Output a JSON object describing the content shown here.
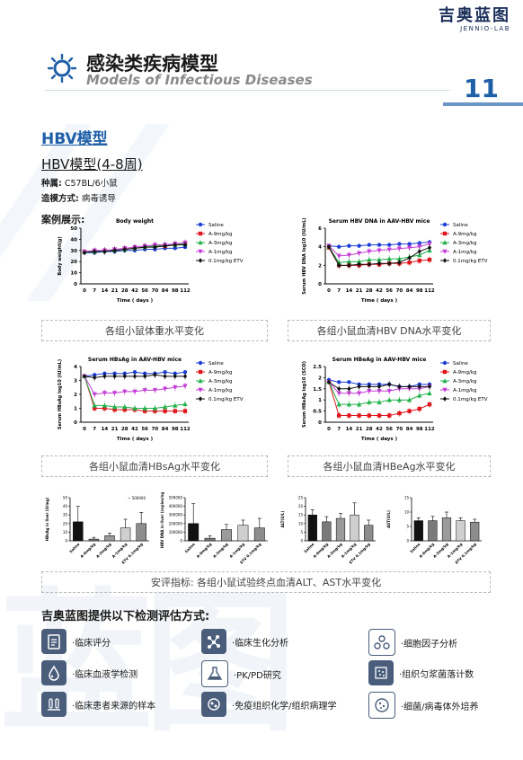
{
  "brand": {
    "cn": "吉奥蓝图",
    "en": "JENNIO-LAB"
  },
  "header": {
    "title_cn": "感染类疾病模型",
    "title_en": "Models of Infectious Diseases",
    "page_number": "11"
  },
  "section": {
    "title": "HBV模型",
    "subtitle": "HBV模型(4-8周)",
    "strain_label": "种属:",
    "strain_value": "C57BL/6小鼠",
    "method_label": "造模方式:",
    "method_value": "病毒诱导",
    "cases_label": "案例展示:"
  },
  "legend": [
    "Saline",
    "A-9mg/kg",
    "A-3mg/kg",
    "A-1mg/kg",
    "0.1mg/kg ETV"
  ],
  "colors": {
    "Saline": "#1c3fd6",
    "A-9mg/kg": "#e0161d",
    "A-3mg/kg": "#22b14c",
    "A-1mg/kg": "#c33fd6",
    "0.1mg/kg ETV": "#111111",
    "accent": "#1e5fa8"
  },
  "captions": {
    "bw": "各组小鼠体重水平变化",
    "dna": "各组小鼠血清HBV DNA水平变化",
    "hbsag": "各组小鼠血清HBsAg水平变化",
    "hbeag": "各组小鼠血清HBeAg水平变化",
    "safety": "安评指标: 各组小鼠试验终点血清ALT、AST水平变化"
  },
  "chart_data": [
    {
      "type": "line",
      "title": "Body weight",
      "xlabel": "Time ( days )",
      "ylabel": "Body weight(g)",
      "ylim": [
        0,
        50
      ],
      "yticks": [
        0,
        10,
        20,
        30,
        40,
        50
      ],
      "x": [
        "0",
        "7",
        "14",
        "21",
        "28",
        "42",
        "56",
        "70",
        "84",
        "98",
        "112"
      ],
      "series": [
        {
          "name": "Saline",
          "values": [
            28,
            28,
            29,
            29,
            30,
            30,
            31,
            31,
            32,
            32,
            33
          ]
        },
        {
          "name": "A-9mg/kg",
          "values": [
            29,
            29,
            30,
            30,
            31,
            32,
            33,
            34,
            34,
            35,
            36
          ]
        },
        {
          "name": "A-3mg/kg",
          "values": [
            29,
            29,
            30,
            30,
            31,
            32,
            33,
            34,
            35,
            35,
            36
          ]
        },
        {
          "name": "A-1mg/kg",
          "values": [
            29,
            30,
            30,
            31,
            32,
            33,
            34,
            35,
            35,
            36,
            37
          ]
        },
        {
          "name": "0.1mg/kg ETV",
          "values": [
            28,
            29,
            29,
            30,
            31,
            32,
            33,
            33,
            34,
            35,
            35
          ]
        }
      ]
    },
    {
      "type": "line",
      "title": "Serum HBV DNA in AAV-HBV mice",
      "xlabel": "Time ( days )",
      "ylabel": "Serum HBV DNA log10 (IU/mL)",
      "ylim": [
        0,
        6
      ],
      "yticks": [
        0,
        2,
        4,
        6
      ],
      "x": [
        "0",
        "7",
        "14",
        "21",
        "28",
        "42",
        "56",
        "70",
        "84",
        "98",
        "112"
      ],
      "series": [
        {
          "name": "Saline",
          "values": [
            4.1,
            4.0,
            4.1,
            4.1,
            4.2,
            4.2,
            4.2,
            4.3,
            4.3,
            4.4,
            4.5
          ]
        },
        {
          "name": "A-9mg/kg",
          "values": [
            3.9,
            2.0,
            2.0,
            2.0,
            2.1,
            2.1,
            2.2,
            2.2,
            2.3,
            2.5,
            2.6
          ]
        },
        {
          "name": "A-3mg/kg",
          "values": [
            4.0,
            2.3,
            2.4,
            2.4,
            2.6,
            2.6,
            2.7,
            2.7,
            2.9,
            3.1,
            3.6
          ]
        },
        {
          "name": "A-1mg/kg",
          "values": [
            4.1,
            3.0,
            3.1,
            3.3,
            3.5,
            3.6,
            3.7,
            3.8,
            3.9,
            4.0,
            4.3
          ]
        },
        {
          "name": "0.1mg/kg ETV",
          "values": [
            4.0,
            2.0,
            2.0,
            2.1,
            2.1,
            2.2,
            2.2,
            2.3,
            2.8,
            3.5,
            3.9
          ]
        }
      ]
    },
    {
      "type": "line",
      "title": "Serum HBsAg in AAV-HBV mice",
      "xlabel": "Time ( days )",
      "ylabel": "Serum HBsAg log10 (IU/mL)",
      "ylim": [
        0,
        4
      ],
      "yticks": [
        0,
        1,
        2,
        3,
        4
      ],
      "x": [
        "0",
        "7",
        "14",
        "21",
        "28",
        "42",
        "56",
        "70",
        "84",
        "98",
        "112"
      ],
      "series": [
        {
          "name": "Saline",
          "values": [
            3.3,
            3.4,
            3.5,
            3.5,
            3.5,
            3.6,
            3.5,
            3.5,
            3.6,
            3.5,
            3.6
          ]
        },
        {
          "name": "A-9mg/kg",
          "values": [
            3.3,
            1.0,
            1.0,
            0.9,
            0.9,
            0.9,
            0.8,
            0.8,
            0.8,
            0.8,
            0.8
          ]
        },
        {
          "name": "A-3mg/kg",
          "values": [
            3.3,
            1.2,
            1.2,
            1.1,
            1.1,
            1.0,
            1.0,
            1.0,
            1.1,
            1.2,
            1.3
          ]
        },
        {
          "name": "A-1mg/kg",
          "values": [
            3.3,
            2.0,
            2.1,
            2.1,
            2.2,
            2.2,
            2.3,
            2.3,
            2.4,
            2.5,
            2.6
          ]
        },
        {
          "name": "0.1mg/kg ETV",
          "values": [
            3.3,
            3.2,
            3.3,
            3.3,
            3.3,
            3.3,
            3.3,
            3.4,
            3.3,
            3.3,
            3.3
          ]
        }
      ]
    },
    {
      "type": "line",
      "title": "Serum HBeAg in AAV-HBV mice",
      "xlabel": "Time ( days )",
      "ylabel": "Serum HBeAg log10 (SCO)",
      "ylim": [
        0,
        2.5
      ],
      "yticks": [
        0,
        0.5,
        1.0,
        1.5,
        2.0,
        2.5
      ],
      "x": [
        "0",
        "7",
        "14",
        "21",
        "28",
        "42",
        "56",
        "70",
        "84",
        "98",
        "112"
      ],
      "series": [
        {
          "name": "Saline",
          "values": [
            1.9,
            1.8,
            1.8,
            1.7,
            1.7,
            1.7,
            1.7,
            1.6,
            1.6,
            1.7,
            1.7
          ]
        },
        {
          "name": "A-9mg/kg",
          "values": [
            1.8,
            0.3,
            0.3,
            0.3,
            0.3,
            0.3,
            0.3,
            0.4,
            0.5,
            0.6,
            0.8
          ]
        },
        {
          "name": "A-3mg/kg",
          "values": [
            1.8,
            0.8,
            0.8,
            0.8,
            0.9,
            0.9,
            1.0,
            1.0,
            1.0,
            1.2,
            1.3
          ]
        },
        {
          "name": "A-1mg/kg",
          "values": [
            1.8,
            1.3,
            1.3,
            1.3,
            1.4,
            1.4,
            1.4,
            1.5,
            1.5,
            1.5,
            1.6
          ]
        },
        {
          "name": "0.1mg/kg ETV",
          "values": [
            1.8,
            1.5,
            1.5,
            1.6,
            1.6,
            1.6,
            1.7,
            1.6,
            1.6,
            1.6,
            1.6
          ]
        }
      ]
    },
    {
      "type": "bar",
      "ylabel": "HBsAg in liver (U/mg)",
      "ylim": [
        0,
        50
      ],
      "yticks": [
        0,
        10,
        20,
        30,
        40,
        50
      ],
      "annotation": "500000",
      "categories": [
        "Saline",
        "A-9mg/kg",
        "A-3mg/kg",
        "A-1mg/kg",
        "ETV 0.1mg/kg"
      ],
      "values": [
        22,
        2,
        6,
        15,
        20
      ],
      "errors": [
        18,
        2,
        3,
        10,
        13
      ]
    },
    {
      "type": "bar",
      "ylabel": "HBV DNA in liver (copies/ng)",
      "ylim": [
        0,
        500000
      ],
      "yticks": [
        "0",
        "100000",
        "200000",
        "300000",
        "400000",
        "500000"
      ],
      "categories": [
        "Saline",
        "A-9mg/kg",
        "A-3mg/kg",
        "A-1mg/kg",
        "ETV 0.1mg/kg"
      ],
      "values": [
        200000,
        30000,
        130000,
        180000,
        150000
      ],
      "errors": [
        230000,
        30000,
        60000,
        60000,
        110000
      ]
    },
    {
      "type": "bar",
      "ylabel": "ALT(U/L)",
      "ylim": [
        0,
        25
      ],
      "yticks": [
        0,
        5,
        10,
        15,
        20,
        25
      ],
      "categories": [
        "Saline",
        "A-9mg/kg",
        "A-3mg/kg",
        "A-1mg/kg",
        "ETV 0.1mg/kg"
      ],
      "values": [
        15,
        11,
        13,
        15,
        9
      ],
      "errors": [
        3,
        3,
        3,
        7,
        3
      ]
    },
    {
      "type": "bar",
      "ylabel": "AST(U/L)",
      "ylim": [
        0,
        15
      ],
      "yticks": [
        0,
        5,
        10,
        15
      ],
      "categories": [
        "Saline",
        "A-9mg/kg",
        "A-3mg/kg",
        "A-1mg/kg",
        "ETV 0.1mg/kg"
      ],
      "values": [
        7,
        7,
        8,
        7,
        6.5
      ],
      "errors": [
        1,
        1.5,
        2,
        1,
        1
      ]
    }
  ],
  "services": {
    "title": "吉奥蓝图提供以下检测评估方式:",
    "items": [
      {
        "label": "·临床评分",
        "icon": "clipboard-icon"
      },
      {
        "label": "·临床生化分析",
        "icon": "molecule-icon"
      },
      {
        "label": "·细胞因子分析",
        "icon": "cytokine-icon"
      },
      {
        "label": "·临床血液学检测",
        "icon": "blood-drop-icon"
      },
      {
        "label": "·PK/PD研究",
        "icon": "flask-icon"
      },
      {
        "label": "·组织匀浆菌落计数",
        "icon": "petri-grid-icon"
      },
      {
        "label": "·临床患者来源的样本",
        "icon": "test-tube-rack-icon"
      },
      {
        "label": "·免疫组织化学/组织病理学",
        "icon": "tissue-icon"
      },
      {
        "label": "·细菌/病毒体外培养",
        "icon": "petri-dish-icon"
      }
    ]
  }
}
